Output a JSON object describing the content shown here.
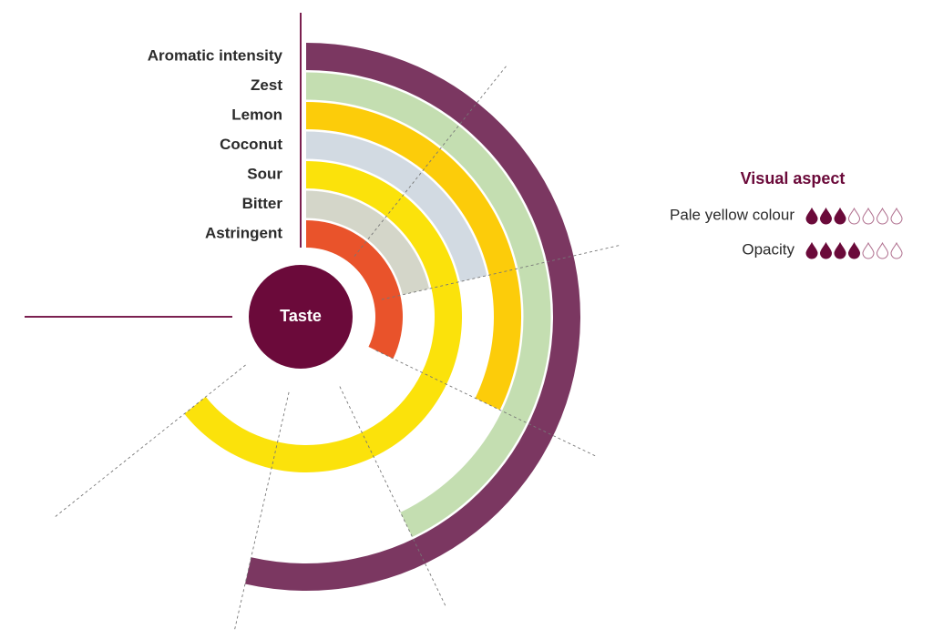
{
  "chart_data": {
    "type": "radial-bar",
    "center_label": "Taste",
    "categories": [
      "Aromatic intensity",
      "Zest",
      "Lemon",
      "Coconut",
      "Sour",
      "Bitter",
      "Astringent"
    ],
    "values": [
      5,
      4,
      3,
      2,
      6,
      2,
      3
    ],
    "colors": [
      "#7b3761",
      "#c4deb1",
      "#fccc0a",
      "#d2dae2",
      "#fbe20b",
      "#d4d6c9",
      "#e9532b"
    ],
    "vlim": [
      0,
      7
    ],
    "vticks": [
      1,
      2,
      3,
      4,
      5,
      6
    ],
    "grid": true
  },
  "visual_aspect": {
    "title": "Visual aspect",
    "max": 7,
    "items": [
      {
        "label": "Pale yellow colour",
        "value": 3
      },
      {
        "label": "Opacity",
        "value": 4
      }
    ]
  }
}
